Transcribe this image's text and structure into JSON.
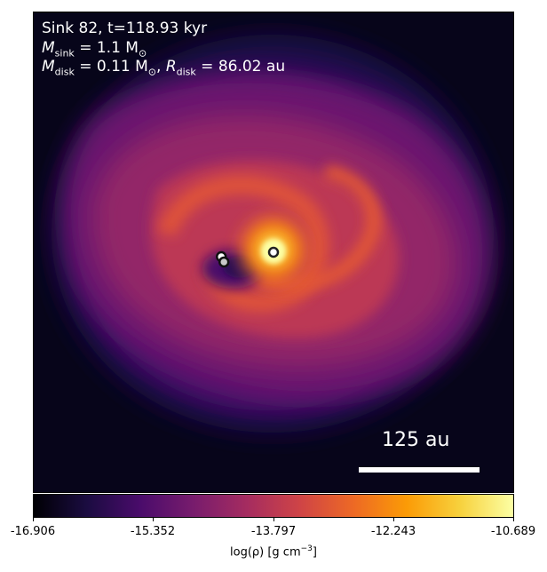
{
  "annotation": {
    "line1": "Sink 82, t=118.93 kyr",
    "msink_label": "M",
    "msink_sub": "sink",
    "msink_value": " = 1.1 M",
    "msink_sun": "⊙",
    "mdisk_label": "M",
    "mdisk_sub": "disk",
    "mdisk_value": " = 0.11 M",
    "mdisk_sun": "⊙",
    "rdisk_sep": ", ",
    "rdisk_label": "R",
    "rdisk_sub": "disk",
    "rdisk_value": " = 86.02 au"
  },
  "scalebar": {
    "label": "125 au"
  },
  "colorbar": {
    "colormap": "inferno",
    "ticks": [
      "-16.906",
      "-15.352",
      "-13.797",
      "-12.243",
      "-10.689"
    ],
    "label_main": "log(ρ) [g cm",
    "label_exp": "−3",
    "label_end": "]"
  },
  "sinks": [
    {
      "name": "sink-marker-1",
      "fill": "#ffffff"
    },
    {
      "name": "sink-marker-2",
      "fill": "#c8c8c8"
    },
    {
      "name": "sink-marker-3",
      "fill": "#ffffff"
    }
  ]
}
